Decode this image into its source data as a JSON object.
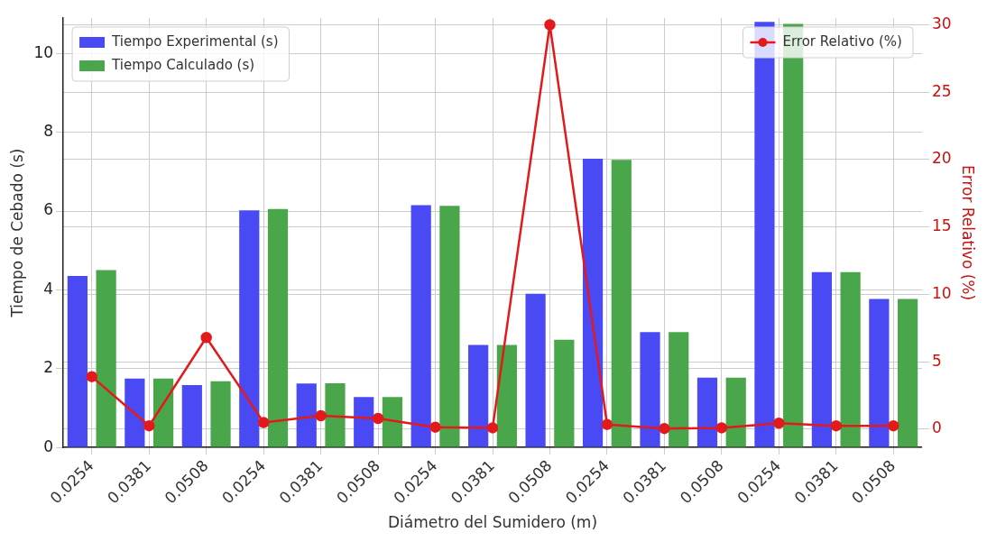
{
  "chart_data": {
    "type": "bar",
    "xlabel": "Diámetro del Sumidero (m)",
    "ylabel": "Tiempo de Cebado (s)",
    "y2label": "Error Relativo (%)",
    "categories": [
      "0.0254",
      "0.0381",
      "0.0508",
      "0.0254",
      "0.0381",
      "0.0508",
      "0.0254",
      "0.0381",
      "0.0508",
      "0.0254",
      "0.0381",
      "0.0508",
      "0.0254",
      "0.0381",
      "0.0508"
    ],
    "series": [
      {
        "name": "Tiempo Experimental (s)",
        "color": "#4a4af5",
        "values": [
          4.35,
          1.75,
          1.58,
          6.02,
          1.62,
          1.28,
          6.15,
          2.6,
          3.9,
          7.33,
          2.93,
          1.77,
          10.8,
          4.45,
          3.77
        ]
      },
      {
        "name": "Tiempo Calculado (s)",
        "color": "#4aa64a",
        "values": [
          4.5,
          1.75,
          1.68,
          6.05,
          1.63,
          1.28,
          6.13,
          2.6,
          2.73,
          7.3,
          2.93,
          1.77,
          10.75,
          4.45,
          3.77
        ]
      },
      {
        "name": "Error Relativo (%)",
        "type": "line",
        "axis": "y2",
        "color": "#e31a1c",
        "marker": "circle",
        "values": [
          3.9,
          0.25,
          6.8,
          0.5,
          1.0,
          0.8,
          0.15,
          0.1,
          30,
          0.35,
          0.05,
          0.1,
          0.45,
          0.25,
          0.25
        ]
      }
    ],
    "ylim": [
      0,
      10.9
    ],
    "yticks": [
      0,
      2,
      4,
      6,
      8,
      10
    ],
    "y2lim": [
      -1.35,
      30.5
    ],
    "y2ticks": [
      0,
      5,
      10,
      15,
      20,
      25,
      30
    ],
    "grid": true,
    "legend": "top left"
  }
}
